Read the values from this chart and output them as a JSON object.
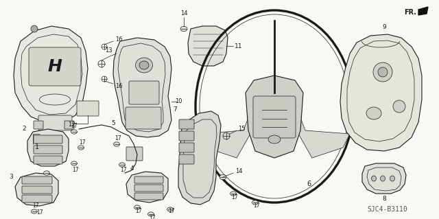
{
  "figsize": [
    6.4,
    3.19
  ],
  "dpi": 100,
  "bg": "#f5f5f0",
  "lc": "#1a1a1a",
  "diagram_code": "SJC4-B3110"
}
